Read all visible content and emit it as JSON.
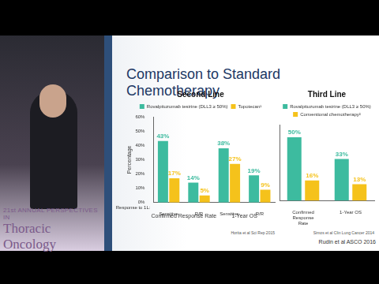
{
  "conference": {
    "edition": "21st ANNUAL PERSPECTIVES IN",
    "name": "Thoracic Oncology"
  },
  "slide_title": "Comparison to Standard Chemotherapy",
  "citation": "Rudin et al ASCO 2016",
  "chart_data": [
    {
      "type": "bar",
      "title": "Second Line",
      "y_label": "Percentage",
      "categories": [
        "Sensitive",
        "R/R",
        "Sensitive",
        "R/R"
      ],
      "groups": [
        "Confirmed Response Rate",
        "1-Year OS"
      ],
      "row_label": "Response to 1L:",
      "source": "Horita et al Sci Rep 2015",
      "series": [
        {
          "name": "Rovalpituzumab tesirine (DLL3 ≥ 50%)",
          "color": "#3dbb9f",
          "values": [
            43,
            14,
            38,
            19
          ],
          "value_labels": [
            "43%",
            "14%",
            "38%",
            "19%"
          ]
        },
        {
          "name": "Topotecan¹",
          "color": "#f5c21b",
          "values": [
            17,
            5,
            27,
            9
          ],
          "value_labels": [
            "17%",
            "5%",
            "27%",
            "9%"
          ]
        }
      ],
      "ylim": [
        0,
        60
      ],
      "yticks": [
        {
          "value": 0,
          "label": "0%"
        },
        {
          "value": 10,
          "label": "10%"
        },
        {
          "value": 20,
          "label": "20%"
        },
        {
          "value": 30,
          "label": "30%"
        },
        {
          "value": 40,
          "label": "40%"
        },
        {
          "value": 50,
          "label": "50%"
        },
        {
          "value": 60,
          "label": "60%"
        }
      ],
      "legend": "top",
      "data_labels": true,
      "grid": false
    },
    {
      "type": "bar",
      "title": "Third Line",
      "categories": [
        "Confirmed Response Rate",
        "1-Year OS"
      ],
      "source": "Simos et al Clin Lung Cancer 2014",
      "series": [
        {
          "name": "Rovalpituzumab tesirine (DLL3 ≥ 50%)",
          "color": "#3dbb9f",
          "values": [
            50,
            33
          ],
          "value_labels": [
            "50%",
            "33%"
          ]
        },
        {
          "name": "Conventional chemotherapy²",
          "color": "#f5c21b",
          "values": [
            16,
            13
          ],
          "value_labels": [
            "16%",
            "13%"
          ]
        }
      ],
      "ylim": [
        0,
        60
      ],
      "legend": "top",
      "data_labels": true,
      "grid": false,
      "tick_labels": "x"
    }
  ]
}
